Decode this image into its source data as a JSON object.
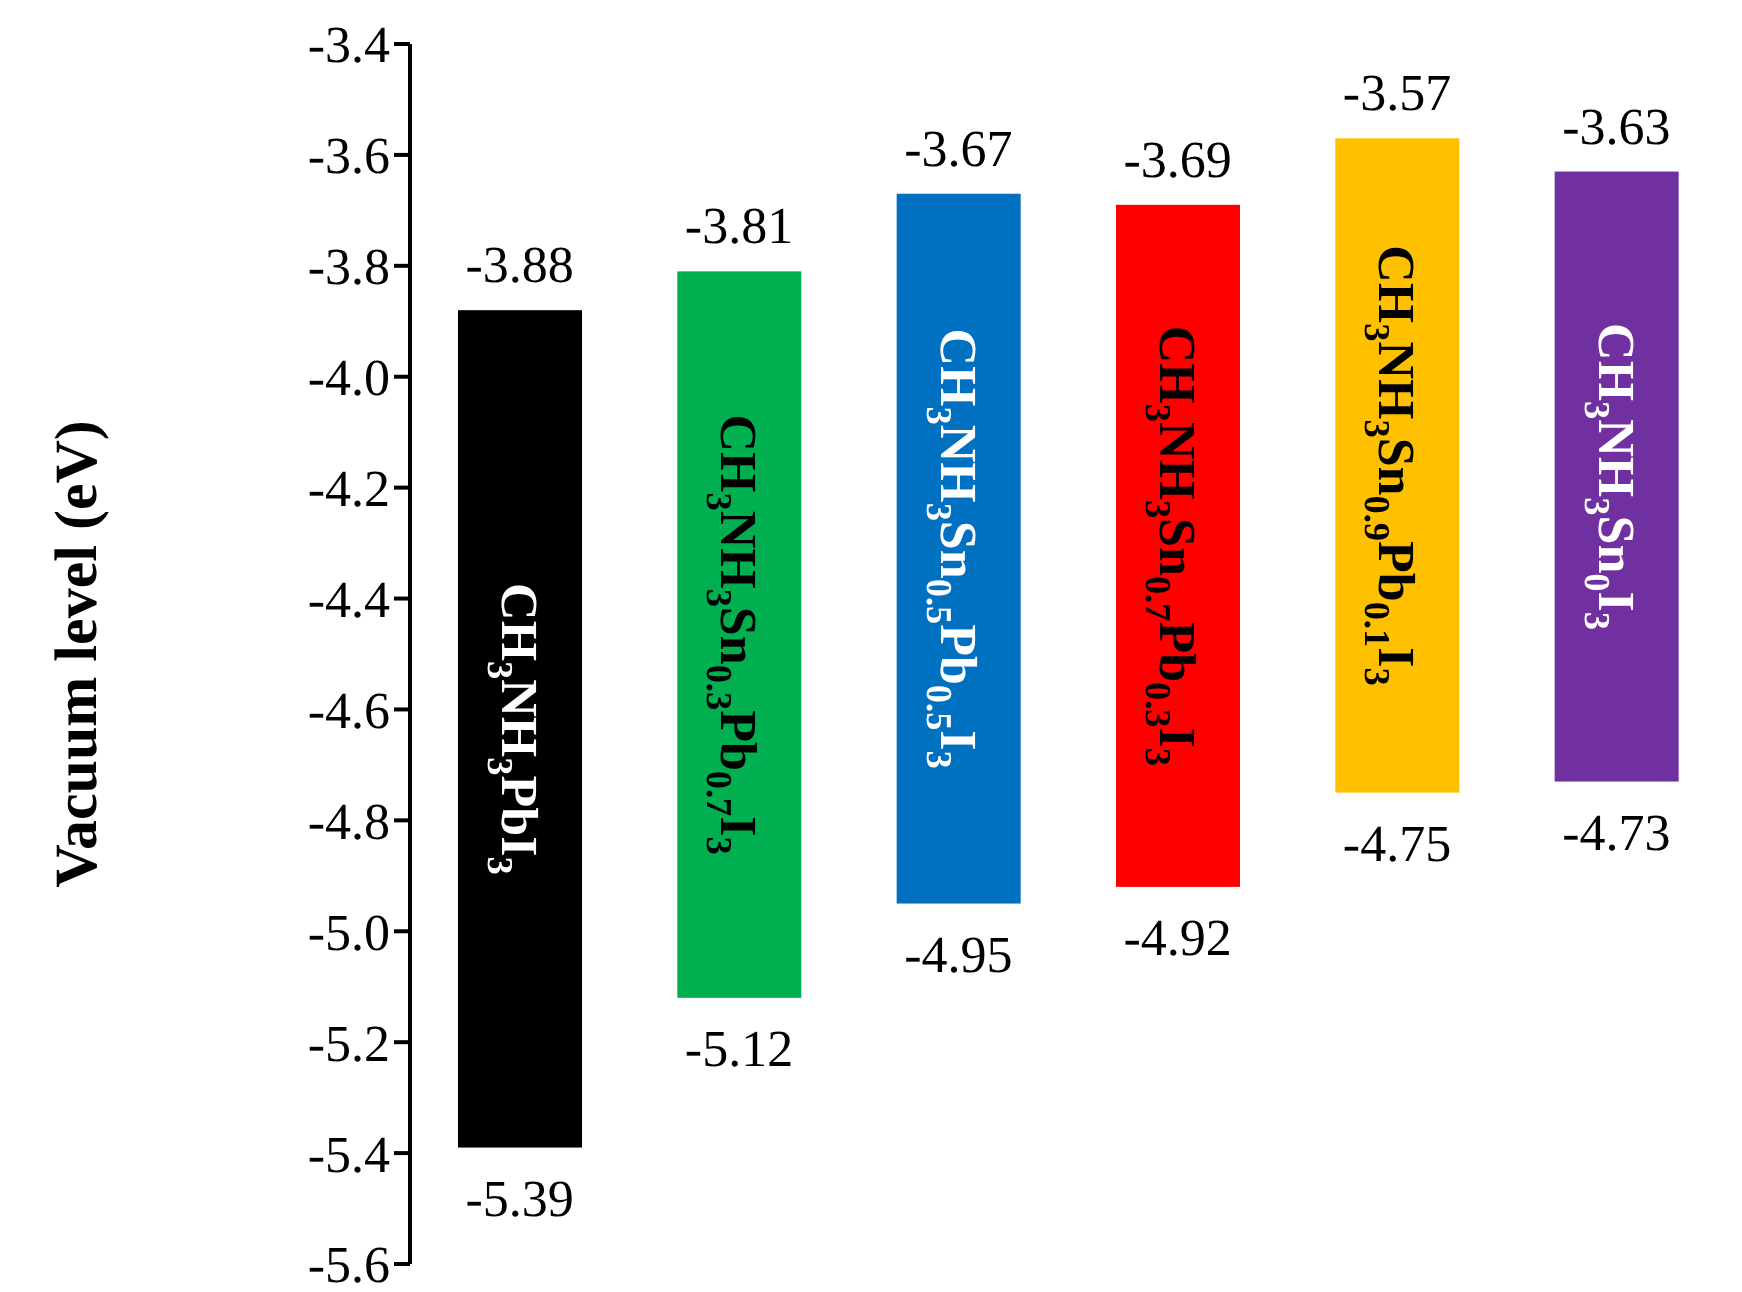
{
  "chart_data": {
    "type": "bar",
    "ylabel": "Vacuum level (eV)",
    "categories": [
      "CH$_{3}$NH$_{3}$PbI$_{3}$",
      "CH$_{3}$NH$_{3}$Sn$_{0.3}$Pb$_{0.7}$I$_{3}$",
      "CH$_{3}$NH$_{3}$Sn$_{0.5}$Pb$_{0.5}$I$_{3}$",
      "CH$_{3}$NH$_{3}$Sn$_{0.7}$Pb$_{0.3}$I$_{3}$",
      "CH$_{3}$NH$_{3}$Sn$_{0.9}$Pb$_{0.1}$I$_{3}$",
      "CH$_{3}$NH$_{3}$Sn$_{0}$I$_{3}$"
    ],
    "base": [
      -5.39,
      -5.12,
      -4.95,
      -4.92,
      -4.75,
      -4.73
    ],
    "values": [
      1.51,
      1.31,
      1.28,
      1.23,
      1.18,
      1.1
    ],
    "colors": [
      "#000000",
      "#00b050",
      "#0070c0",
      "#ff0000",
      "#ffc000",
      "#7030a0"
    ],
    "ylim": [
      -5.6,
      -3.4
    ],
    "yticks": [
      -5.6,
      -5.4,
      -5.2,
      {
        "value": -5,
        "label": "-5.0"
      },
      -4.8,
      -4.6,
      -4.4,
      -4.2,
      {
        "value": -4,
        "label": "-4.0"
      },
      -3.8,
      -3.6,
      -3.4
    ],
    "annotations": [
      {
        "text": "-3.88",
        "x": "CH$_{3}$NH$_{3}$PbI$_{3}$",
        "y": -3.88
      },
      {
        "text": "-5.39",
        "x": "CH$_{3}$NH$_{3}$PbI$_{3}$",
        "y": -5.39
      },
      {
        "text": "-3.81",
        "x": "CH$_{3}$NH$_{3}$Sn$_{0.3}$Pb$_{0.7}$I$_{3}$",
        "y": -3.81
      },
      {
        "text": "-5.12",
        "x": "CH$_{3}$NH$_{3}$Sn$_{0.3}$Pb$_{0.7}$I$_{3}$",
        "y": -5.12
      },
      {
        "text": "-3.67",
        "x": "CH$_{3}$NH$_{3}$Sn$_{0.5}$Pb$_{0.5}$I$_{3}$",
        "y": -3.67
      },
      {
        "text": "-4.95",
        "x": "CH$_{3}$NH$_{3}$Sn$_{0.5}$Pb$_{0.5}$I$_{3}$",
        "y": -4.95
      },
      {
        "text": "-3.69",
        "x": "CH$_{3}$NH$_{3}$Sn$_{0.7}$Pb$_{0.3}$I$_{3}$",
        "y": -3.69
      },
      {
        "text": "-4.92",
        "x": "CH$_{3}$NH$_{3}$Sn$_{0.7}$Pb$_{0.3}$I$_{3}$",
        "y": -4.92
      },
      {
        "text": "-3.57",
        "x": "CH$_{3}$NH$_{3}$Sn$_{0.9}$Pb$_{0.1}$I$_{3}$",
        "y": -3.57
      },
      {
        "text": "-4.75",
        "x": "CH$_{3}$NH$_{3}$Sn$_{0.9}$Pb$_{0.1}$I$_{3}$",
        "y": -4.75
      },
      {
        "text": "-3.63",
        "x": "CH$_{3}$NH$_{3}$Sn$_{0}$I$_{3}$",
        "y": -3.63
      },
      {
        "text": "-4.73",
        "x": "CH$_{3}$NH$_{3}$Sn$_{0}$I$_{3}$",
        "y": -4.73
      }
    ]
  }
}
